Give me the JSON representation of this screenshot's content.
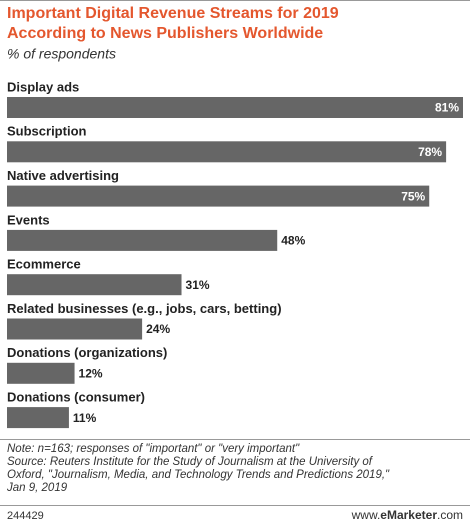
{
  "chart_data": {
    "type": "bar",
    "orientation": "horizontal",
    "title": [
      "Important Digital Revenue Streams for 2019",
      "According to News Publishers Worldwide"
    ],
    "subtitle": "% of respondents",
    "categories": [
      "Display ads",
      "Subscription",
      "Native advertising",
      "Events",
      "Ecommerce",
      "Related businesses (e.g., jobs, cars, betting)",
      "Donations (organizations)",
      "Donations (consumer)"
    ],
    "values": [
      81,
      78,
      75,
      48,
      31,
      24,
      12,
      11
    ],
    "value_labels": [
      "81%",
      "78%",
      "75%",
      "48%",
      "31%",
      "24%",
      "12%",
      "11%"
    ],
    "color": "#666666",
    "notes": [
      "Note: n=163; responses of \"important\" or \"very important\"",
      "Source: Reuters Institute for the Study of Journalism at the University of",
      "Oxford, \"Journalism, Media, and Technology Trends and Predictions 2019,\"",
      "Jan 9, 2019"
    ],
    "chart_id": "244429",
    "site": [
      "www.",
      "eMarketer",
      ".com"
    ]
  }
}
